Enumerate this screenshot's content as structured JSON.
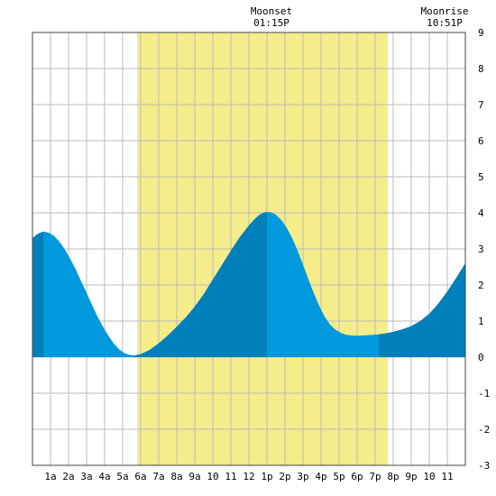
{
  "chart_data": {
    "type": "area",
    "title": "",
    "xlabel": "",
    "ylabel": "",
    "x_unit": "hour of day",
    "xlim": [
      0,
      24
    ],
    "ylim": [
      -3,
      9
    ],
    "grid": true,
    "x_ticks": [
      {
        "hour": 1,
        "label": "1a"
      },
      {
        "hour": 2,
        "label": "2a"
      },
      {
        "hour": 3,
        "label": "3a"
      },
      {
        "hour": 4,
        "label": "4a"
      },
      {
        "hour": 5,
        "label": "5a"
      },
      {
        "hour": 6,
        "label": "6a"
      },
      {
        "hour": 7,
        "label": "7a"
      },
      {
        "hour": 8,
        "label": "8a"
      },
      {
        "hour": 9,
        "label": "9a"
      },
      {
        "hour": 10,
        "label": "10"
      },
      {
        "hour": 11,
        "label": "11"
      },
      {
        "hour": 12,
        "label": "12"
      },
      {
        "hour": 13,
        "label": "1p"
      },
      {
        "hour": 14,
        "label": "2p"
      },
      {
        "hour": 15,
        "label": "3p"
      },
      {
        "hour": 16,
        "label": "4p"
      },
      {
        "hour": 17,
        "label": "5p"
      },
      {
        "hour": 18,
        "label": "6p"
      },
      {
        "hour": 19,
        "label": "7p"
      },
      {
        "hour": 20,
        "label": "8p"
      },
      {
        "hour": 21,
        "label": "9p"
      },
      {
        "hour": 22,
        "label": "10"
      },
      {
        "hour": 23,
        "label": "11"
      }
    ],
    "y_ticks": [
      -3,
      -2,
      -1,
      0,
      1,
      2,
      3,
      4,
      5,
      6,
      7,
      8,
      9
    ],
    "daylight": {
      "start_hour": 5.8,
      "end_hour": 19.7
    },
    "series": [
      {
        "x": [
          0,
          0.3,
          0.6,
          0.9,
          1.2,
          1.5,
          1.8,
          2.1,
          2.4,
          2.7,
          3.0,
          3.3,
          3.6,
          3.9,
          4.2,
          4.5,
          4.8,
          5.1,
          5.4,
          5.7,
          6.0,
          6.5,
          7.0,
          7.5,
          8.0,
          8.5,
          9.0,
          9.5,
          10.0,
          10.5,
          11.0,
          11.5,
          12.0,
          12.3,
          12.6,
          12.9,
          13.2,
          13.5,
          13.8,
          14.1,
          14.4,
          14.7,
          15.0,
          15.3,
          15.6,
          15.9,
          16.2,
          16.5,
          16.8,
          17.1,
          17.4,
          17.7,
          18.0,
          18.3,
          18.6,
          18.9,
          19.2,
          19.5,
          20.0,
          20.5,
          21.0,
          21.5,
          22.0,
          22.5,
          23.0,
          23.5,
          24.0
        ],
        "values": [
          3.3,
          3.42,
          3.48,
          3.45,
          3.36,
          3.2,
          2.98,
          2.72,
          2.43,
          2.1,
          1.78,
          1.45,
          1.13,
          0.85,
          0.6,
          0.38,
          0.22,
          0.11,
          0.06,
          0.05,
          0.08,
          0.2,
          0.38,
          0.6,
          0.84,
          1.1,
          1.4,
          1.75,
          2.15,
          2.55,
          2.95,
          3.33,
          3.65,
          3.82,
          3.95,
          4.02,
          4.02,
          3.95,
          3.8,
          3.58,
          3.3,
          2.95,
          2.56,
          2.16,
          1.77,
          1.42,
          1.12,
          0.9,
          0.76,
          0.67,
          0.62,
          0.6,
          0.59,
          0.6,
          0.61,
          0.62,
          0.63,
          0.65,
          0.7,
          0.77,
          0.86,
          1.0,
          1.2,
          1.48,
          1.82,
          2.2,
          2.6
        ]
      }
    ],
    "annotations": [
      {
        "line1": "Moonset",
        "line2": "01:15P",
        "hour": 13.25
      },
      {
        "line1": "Moonrise",
        "line2": "10:51P",
        "hour": 22.85
      }
    ],
    "colors": {
      "daylight": "#f5ec8a",
      "tide_light": "#0099dd",
      "tide_dark": "#0080bb",
      "grid": "#bbbbbb",
      "frame": "#444444"
    },
    "dark_bands": [
      [
        0,
        0.6
      ],
      [
        5.7,
        13.0
      ],
      [
        19.2,
        24
      ]
    ]
  }
}
